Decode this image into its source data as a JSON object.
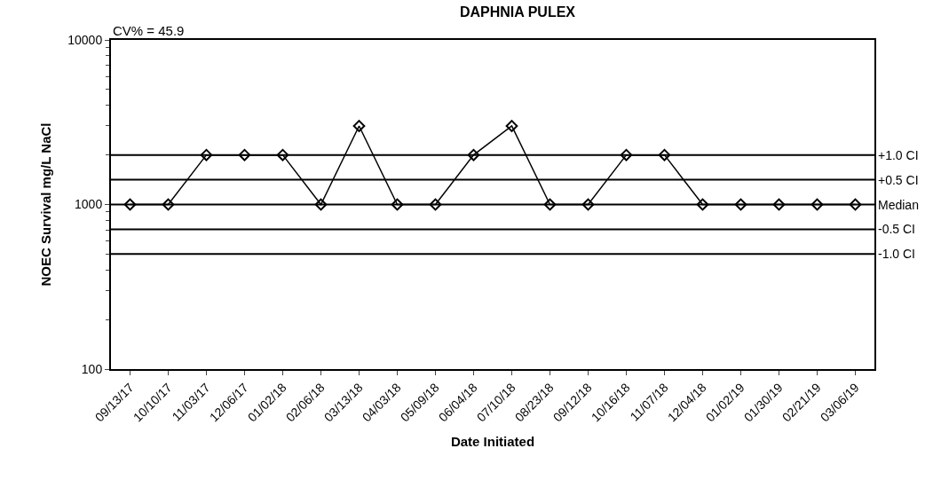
{
  "chart_data": {
    "type": "line",
    "title": "DAPHNIA PULEX",
    "xlabel": "Date Initiated",
    "ylabel": "NOEC Survival mg/L NaCl",
    "annotations": [
      "CV% = 45.9"
    ],
    "categories": [
      "09/13/17",
      "10/10/17",
      "11/03/17",
      "12/06/17",
      "01/02/18",
      "02/06/18",
      "03/13/18",
      "04/03/18",
      "05/09/18",
      "06/04/18",
      "07/10/18",
      "08/23/18",
      "09/12/18",
      "10/16/18",
      "11/07/18",
      "12/04/18",
      "01/02/19",
      "01/30/19",
      "02/21/19",
      "03/06/19"
    ],
    "series": [
      {
        "color": "#000000",
        "values": [
          1000,
          1000,
          2000,
          2000,
          2000,
          1000,
          3000,
          1000,
          1000,
          2000,
          3000,
          1000,
          1000,
          2000,
          2000,
          1000,
          1000,
          1000,
          1000,
          1000
        ]
      }
    ],
    "log": true,
    "ylim": [
      100,
      10000
    ],
    "yticks": [
      100,
      1000,
      10000
    ],
    "ref_lines": [
      {
        "axis": "y",
        "value": 2000,
        "label": "+1.0 CI",
        "color": "#000000"
      },
      {
        "axis": "y",
        "value": 1414,
        "label": "+0.5 CI",
        "color": "#000000"
      },
      {
        "axis": "y",
        "value": 1000,
        "label": "Median",
        "color": "#000000"
      },
      {
        "axis": "y",
        "value": 707,
        "label": "-0.5 CI",
        "color": "#000000"
      },
      {
        "axis": "y",
        "value": 500,
        "label": "-1.0 CI",
        "color": "#000000"
      }
    ],
    "marker": "diamond",
    "line_style": "solid"
  }
}
